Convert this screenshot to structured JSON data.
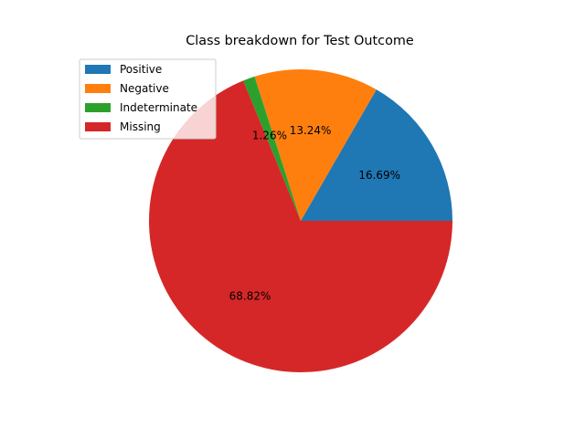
{
  "chart_data": {
    "type": "pie",
    "title": "Class breakdown for Test Outcome",
    "slices": [
      {
        "label": "Positive",
        "percent": 16.69,
        "percent_label": "16.69%",
        "color": "#1f77b4"
      },
      {
        "label": "Negative",
        "percent": 13.24,
        "percent_label": "13.24%",
        "color": "#ff7f0e"
      },
      {
        "label": "Indeterminate",
        "percent": 1.26,
        "percent_label": "1.26%",
        "color": "#2ca02c"
      },
      {
        "label": "Missing",
        "percent": 68.82,
        "percent_label": "68.82%",
        "color": "#d62728"
      }
    ],
    "legend_position": "upper-left",
    "start_angle_deg": 0,
    "direction": "counterclockwise"
  }
}
